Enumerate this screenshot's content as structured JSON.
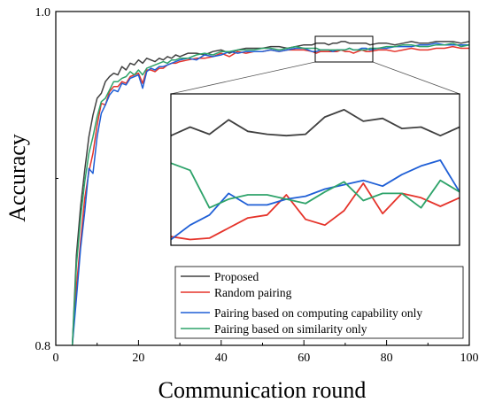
{
  "chart_data": {
    "type": "line",
    "xlabel": "Communication round",
    "ylabel": "Accuracy",
    "xlim": [
      0,
      100
    ],
    "ylim": [
      0.8,
      1.0
    ],
    "x_ticks": [
      "0",
      "20",
      "40",
      "60",
      "80",
      "100"
    ],
    "y_ticks": [
      "0.8",
      "1.0"
    ],
    "legend_position": "bottom-right",
    "inset_zoom": {
      "x_range": [
        62,
        76
      ],
      "y_range": [
        0.9736,
        0.9841
      ]
    },
    "series": [
      {
        "name": "Proposed",
        "color": "#404040",
        "x": [
          4,
          5,
          6,
          7,
          8,
          9,
          10,
          11,
          12,
          13,
          14,
          15,
          16,
          17,
          18,
          19,
          20,
          21,
          22,
          23,
          24,
          25,
          26,
          27,
          28,
          29,
          30,
          32,
          34,
          36,
          38,
          40,
          42,
          44,
          46,
          48,
          50,
          52,
          54,
          56,
          58,
          60,
          62,
          63,
          64,
          65,
          66,
          67,
          68,
          69,
          70,
          71,
          72,
          73,
          74,
          75,
          76,
          78,
          80,
          82,
          84,
          86,
          88,
          90,
          92,
          94,
          96,
          98,
          100
        ],
        "y": [
          0.8,
          0.854,
          0.883,
          0.905,
          0.925,
          0.938,
          0.948,
          0.951,
          0.958,
          0.961,
          0.963,
          0.962,
          0.967,
          0.965,
          0.969,
          0.968,
          0.971,
          0.969,
          0.972,
          0.971,
          0.97,
          0.972,
          0.971,
          0.973,
          0.972,
          0.974,
          0.973,
          0.975,
          0.975,
          0.974,
          0.976,
          0.977,
          0.975,
          0.977,
          0.978,
          0.978,
          0.978,
          0.979,
          0.979,
          0.978,
          0.979,
          0.98,
          0.98,
          0.981,
          0.981,
          0.981,
          0.98,
          0.981,
          0.981,
          0.982,
          0.982,
          0.981,
          0.981,
          0.981,
          0.981,
          0.981,
          0.98,
          0.981,
          0.981,
          0.98,
          0.981,
          0.982,
          0.981,
          0.981,
          0.982,
          0.982,
          0.982,
          0.981,
          0.982
        ]
      },
      {
        "name": "Random pairing",
        "color": "#e5332a",
        "x": [
          4,
          5,
          6,
          7,
          8,
          9,
          10,
          11,
          12,
          13,
          14,
          15,
          16,
          17,
          18,
          19,
          20,
          21,
          22,
          23,
          24,
          25,
          26,
          27,
          28,
          29,
          30,
          32,
          34,
          36,
          38,
          40,
          42,
          44,
          46,
          48,
          50,
          52,
          54,
          56,
          58,
          60,
          62,
          63,
          64,
          65,
          66,
          67,
          68,
          69,
          70,
          71,
          72,
          73,
          74,
          75,
          76,
          78,
          80,
          82,
          84,
          86,
          88,
          90,
          92,
          94,
          96,
          98,
          100
        ],
        "y": [
          0.8,
          0.835,
          0.862,
          0.888,
          0.904,
          0.915,
          0.932,
          0.945,
          0.944,
          0.952,
          0.955,
          0.955,
          0.958,
          0.957,
          0.961,
          0.962,
          0.963,
          0.957,
          0.965,
          0.965,
          0.964,
          0.966,
          0.966,
          0.968,
          0.969,
          0.969,
          0.97,
          0.971,
          0.972,
          0.972,
          0.973,
          0.975,
          0.973,
          0.976,
          0.975,
          0.976,
          0.976,
          0.977,
          0.976,
          0.977,
          0.977,
          0.977,
          0.976,
          0.975,
          0.976,
          0.976,
          0.976,
          0.976,
          0.976,
          0.977,
          0.976,
          0.976,
          0.975,
          0.976,
          0.977,
          0.976,
          0.976,
          0.977,
          0.977,
          0.976,
          0.977,
          0.978,
          0.977,
          0.977,
          0.978,
          0.978,
          0.979,
          0.978,
          0.978
        ]
      },
      {
        "name": "Pairing based on computing capability only",
        "color": "#1f5fd6",
        "x": [
          4,
          5,
          6,
          7,
          8,
          9,
          10,
          11,
          12,
          13,
          14,
          15,
          16,
          17,
          18,
          19,
          20,
          21,
          22,
          23,
          24,
          25,
          26,
          27,
          28,
          29,
          30,
          32,
          34,
          36,
          38,
          40,
          42,
          44,
          46,
          48,
          50,
          52,
          54,
          56,
          58,
          60,
          62,
          63,
          64,
          65,
          66,
          67,
          68,
          69,
          70,
          71,
          72,
          73,
          74,
          75,
          76,
          78,
          80,
          82,
          84,
          86,
          88,
          90,
          92,
          94,
          96,
          98,
          100
        ],
        "y": [
          0.8,
          0.828,
          0.858,
          0.88,
          0.906,
          0.903,
          0.925,
          0.939,
          0.944,
          0.95,
          0.953,
          0.952,
          0.957,
          0.956,
          0.96,
          0.961,
          0.962,
          0.954,
          0.964,
          0.966,
          0.965,
          0.967,
          0.967,
          0.968,
          0.969,
          0.97,
          0.971,
          0.972,
          0.971,
          0.974,
          0.973,
          0.974,
          0.976,
          0.975,
          0.976,
          0.976,
          0.976,
          0.977,
          0.976,
          0.977,
          0.978,
          0.978,
          0.976,
          0.976,
          0.977,
          0.977,
          0.977,
          0.976,
          0.977,
          0.977,
          0.977,
          0.978,
          0.977,
          0.977,
          0.978,
          0.978,
          0.977,
          0.978,
          0.978,
          0.979,
          0.979,
          0.979,
          0.98,
          0.98,
          0.981,
          0.98,
          0.98,
          0.98,
          0.98
        ]
      },
      {
        "name": "Pairing based on similarity only",
        "color": "#2ea36a",
        "x": [
          4,
          5,
          6,
          7,
          8,
          9,
          10,
          11,
          12,
          13,
          14,
          15,
          16,
          17,
          18,
          19,
          20,
          21,
          22,
          23,
          24,
          25,
          26,
          27,
          28,
          29,
          30,
          32,
          34,
          36,
          38,
          40,
          42,
          44,
          46,
          48,
          50,
          52,
          54,
          56,
          58,
          60,
          62,
          63,
          64,
          65,
          66,
          67,
          68,
          69,
          70,
          71,
          72,
          73,
          74,
          75,
          76,
          78,
          80,
          82,
          84,
          86,
          88,
          90,
          92,
          94,
          96,
          98,
          100
        ],
        "y": [
          0.8,
          0.848,
          0.876,
          0.898,
          0.915,
          0.925,
          0.937,
          0.946,
          0.948,
          0.953,
          0.958,
          0.958,
          0.96,
          0.961,
          0.964,
          0.962,
          0.965,
          0.962,
          0.966,
          0.967,
          0.968,
          0.969,
          0.97,
          0.969,
          0.971,
          0.971,
          0.972,
          0.972,
          0.974,
          0.975,
          0.974,
          0.976,
          0.976,
          0.977,
          0.977,
          0.977,
          0.978,
          0.978,
          0.977,
          0.978,
          0.979,
          0.978,
          0.978,
          0.978,
          0.977,
          0.977,
          0.977,
          0.977,
          0.977,
          0.977,
          0.977,
          0.978,
          0.977,
          0.977,
          0.977,
          0.977,
          0.978,
          0.978,
          0.979,
          0.979,
          0.98,
          0.98,
          0.979,
          0.979,
          0.98,
          0.98,
          0.981,
          0.979,
          0.98
        ]
      }
    ]
  },
  "inset": {
    "series": [
      {
        "name": "Proposed",
        "values": [
          0.9812,
          0.9818,
          0.9813,
          0.9823,
          0.9815,
          0.9813,
          0.9812,
          0.9813,
          0.9825,
          0.983,
          0.9822,
          0.9824,
          0.9817,
          0.9818,
          0.9812,
          0.9818
        ]
      },
      {
        "name": "Random pairing",
        "values": [
          0.9742,
          0.974,
          0.9741,
          0.9748,
          0.9755,
          0.9757,
          0.9771,
          0.9754,
          0.975,
          0.976,
          0.9779,
          0.9758,
          0.9772,
          0.9769,
          0.9763,
          0.9769
        ]
      },
      {
        "name": "Pairing based on computing capability only",
        "values": [
          0.974,
          0.975,
          0.9757,
          0.9772,
          0.9764,
          0.9764,
          0.9768,
          0.977,
          0.9775,
          0.9778,
          0.9781,
          0.9777,
          0.9785,
          0.9791,
          0.9795,
          0.9773
        ]
      },
      {
        "name": "Pairing based on similarity only",
        "values": [
          0.9793,
          0.9788,
          0.9762,
          0.9768,
          0.9771,
          0.9771,
          0.9768,
          0.9765,
          0.9773,
          0.978,
          0.9767,
          0.9772,
          0.9772,
          0.9762,
          0.9781,
          0.9773
        ]
      }
    ]
  }
}
